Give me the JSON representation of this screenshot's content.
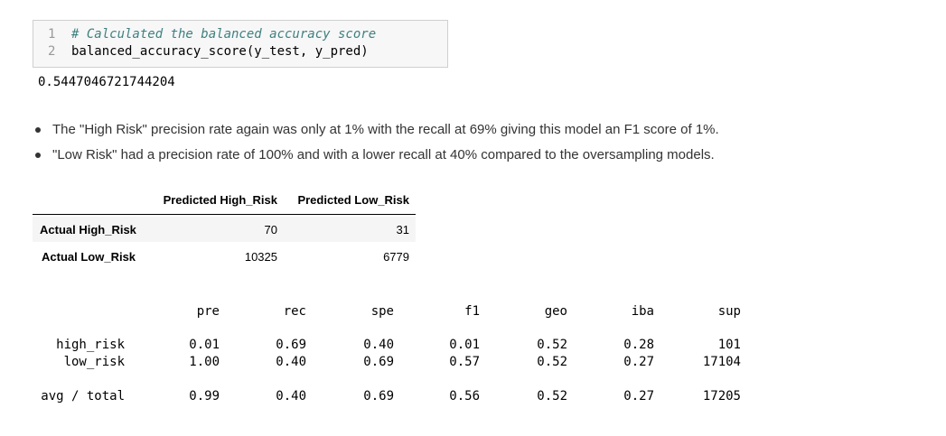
{
  "code": {
    "lines": [
      {
        "number": "1",
        "text": "# Calculated the balanced accuracy score"
      },
      {
        "number": "2",
        "text": "balanced_accuracy_score(y_test, y_pred)"
      }
    ]
  },
  "output": "0.5447046721744204",
  "bullets": [
    "The \"High Risk\" precision rate again was only at 1% with the recall at 69% giving this model an F1 score of 1%.",
    "\"Low Risk\" had a precision rate of 100% and with a lower recall at 40% compared to the oversampling models."
  ],
  "confusion_table": {
    "header": [
      "Predicted High_Risk",
      "Predicted Low_Risk"
    ],
    "rows": [
      [
        "Actual High_Risk",
        "70",
        "31"
      ],
      [
        "Actual Low_Risk",
        "10325",
        "6779"
      ]
    ]
  },
  "report": {
    "header": [
      "pre",
      "rec",
      "spe",
      "f1",
      "geo",
      "iba",
      "sup"
    ],
    "rows": [
      [
        "high_risk",
        "0.01",
        "0.69",
        "0.40",
        "0.01",
        "0.52",
        "0.28",
        "101"
      ],
      [
        "low_risk",
        "1.00",
        "0.40",
        "0.69",
        "0.57",
        "0.52",
        "0.27",
        "17104"
      ]
    ],
    "total": [
      "avg / total",
      "0.99",
      "0.40",
      "0.69",
      "0.56",
      "0.52",
      "0.27",
      "17205"
    ]
  }
}
